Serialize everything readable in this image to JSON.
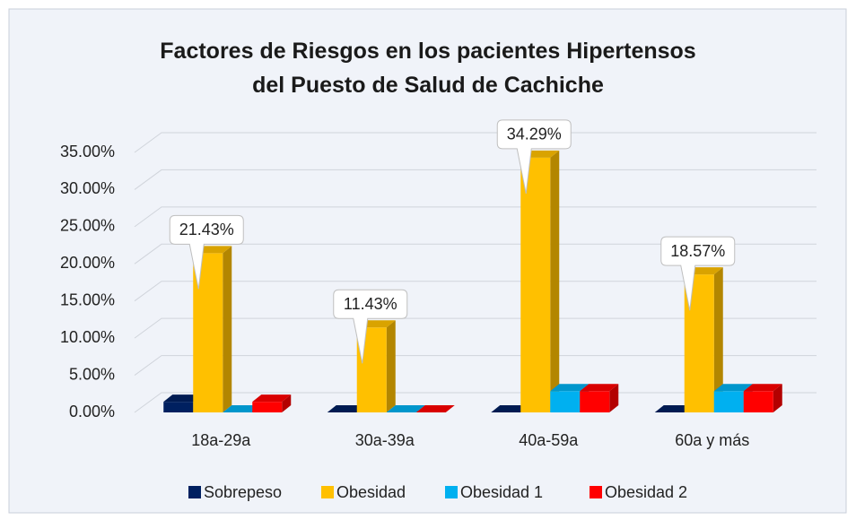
{
  "chart_data": {
    "type": "bar3d",
    "title": "Factores de Riesgos en los pacientes Hipertensos del Puesto de Salud de Cachiche",
    "categories": [
      "18a-29a",
      "30a-39a",
      "40a-59a",
      "60a y más"
    ],
    "series": [
      {
        "name": "Sobrepeso",
        "color": "#002060",
        "values": [
          1.43,
          0,
          0,
          0
        ]
      },
      {
        "name": "Obesidad",
        "color": "#ffc000",
        "values": [
          21.43,
          11.43,
          34.29,
          18.57
        ],
        "value_labels": [
          "21.43%",
          "11.43%",
          "34.29%",
          "18.57%"
        ]
      },
      {
        "name": "Obesidad 1",
        "color": "#00b0f0",
        "values": [
          0,
          0,
          2.86,
          2.86
        ]
      },
      {
        "name": "Obesidad 2",
        "color": "#ff0000",
        "values": [
          1.43,
          0,
          2.86,
          2.86
        ]
      }
    ],
    "ylim": [
      0,
      35
    ],
    "yticks": [
      {
        "value": 0,
        "label": "0.00%"
      },
      {
        "value": 5,
        "label": "5.00%"
      },
      {
        "value": 10,
        "label": "10.00%"
      },
      {
        "value": 15,
        "label": "15.00%"
      },
      {
        "value": 20,
        "label": "20.00%"
      },
      {
        "value": 25,
        "label": "25.00%"
      },
      {
        "value": 30,
        "label": "30.00%"
      },
      {
        "value": 35,
        "label": "35.00%"
      }
    ],
    "grid": true,
    "legend": "bottom"
  }
}
